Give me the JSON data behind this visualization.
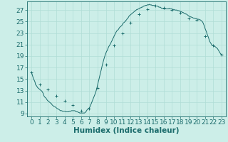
{
  "title": "",
  "xlabel": "Humidex (Indice chaleur)",
  "xlim": [
    -0.5,
    23.5
  ],
  "ylim": [
    8.5,
    28.5
  ],
  "yticks": [
    9,
    11,
    13,
    15,
    17,
    19,
    21,
    23,
    25,
    27
  ],
  "xticks": [
    0,
    1,
    2,
    3,
    4,
    5,
    6,
    7,
    8,
    9,
    10,
    11,
    12,
    13,
    14,
    15,
    16,
    17,
    18,
    19,
    20,
    21,
    22,
    23
  ],
  "bg_color": "#cceee8",
  "line_color": "#1a6b6b",
  "grid_color": "#b0ddd6",
  "marker_x": [
    0,
    1,
    2,
    3,
    4,
    5,
    6,
    7,
    8,
    9,
    10,
    11,
    12,
    13,
    14,
    15,
    16,
    17,
    18,
    19,
    20,
    21,
    22,
    23
  ],
  "marker_y": [
    16.2,
    14.0,
    13.2,
    12.1,
    11.2,
    10.5,
    9.5,
    9.8,
    13.5,
    17.5,
    20.8,
    23.0,
    24.8,
    26.3,
    27.2,
    27.8,
    27.4,
    27.0,
    26.5,
    25.5,
    25.3,
    22.5,
    20.8,
    19.2
  ],
  "line_x": [
    0.0,
    0.08,
    0.17,
    0.25,
    0.33,
    0.42,
    0.5,
    0.58,
    0.67,
    0.75,
    0.83,
    0.92,
    1.0,
    1.08,
    1.17,
    1.25,
    1.33,
    1.42,
    1.5,
    1.58,
    1.67,
    1.75,
    1.83,
    1.92,
    2.0,
    2.08,
    2.17,
    2.25,
    2.33,
    2.42,
    2.5,
    2.58,
    2.67,
    2.75,
    2.83,
    2.92,
    3.0,
    3.08,
    3.17,
    3.25,
    3.33,
    3.42,
    3.5,
    3.58,
    3.67,
    3.75,
    3.83,
    3.92,
    4.0,
    4.08,
    4.17,
    4.25,
    4.33,
    4.42,
    4.5,
    4.58,
    4.67,
    4.75,
    4.83,
    4.92,
    5.0,
    5.08,
    5.17,
    5.25,
    5.33,
    5.42,
    5.5,
    5.58,
    5.67,
    5.75,
    5.83,
    5.92,
    6.0,
    6.08,
    6.17,
    6.25,
    6.33,
    6.42,
    6.5,
    6.58,
    6.67,
    6.75,
    6.83,
    6.92,
    7.0,
    7.08,
    7.17,
    7.25,
    7.33,
    7.42,
    7.5,
    7.58,
    7.67,
    7.75,
    7.83,
    7.92,
    8.0,
    8.08,
    8.17,
    8.25,
    8.33,
    8.42,
    8.5,
    8.58,
    8.67,
    8.75,
    8.83,
    8.92,
    9.0,
    9.08,
    9.17,
    9.25,
    9.33,
    9.42,
    9.5,
    9.58,
    9.67,
    9.75,
    9.83,
    9.92,
    10.0,
    10.08,
    10.17,
    10.25,
    10.33,
    10.42,
    10.5,
    10.58,
    10.67,
    10.75,
    10.83,
    10.92,
    11.0,
    11.08,
    11.17,
    11.25,
    11.33,
    11.42,
    11.5,
    11.58,
    11.67,
    11.75,
    11.83,
    11.92,
    12.0,
    12.08,
    12.17,
    12.25,
    12.33,
    12.42,
    12.5,
    12.58,
    12.67,
    12.75,
    12.83,
    12.92,
    13.0,
    13.08,
    13.17,
    13.25,
    13.33,
    13.42,
    13.5,
    13.58,
    13.67,
    13.75,
    13.83,
    13.92,
    14.0,
    14.08,
    14.17,
    14.25,
    14.33,
    14.42,
    14.5,
    14.58,
    14.67,
    14.75,
    14.83,
    14.92,
    15.0,
    15.08,
    15.17,
    15.25,
    15.33,
    15.42,
    15.5,
    15.58,
    15.67,
    15.75,
    15.83,
    15.92,
    16.0,
    16.08,
    16.17,
    16.25,
    16.33,
    16.42,
    16.5,
    16.58,
    16.67,
    16.75,
    16.83,
    16.92,
    17.0,
    17.08,
    17.17,
    17.25,
    17.33,
    17.42,
    17.5,
    17.58,
    17.67,
    17.75,
    17.83,
    17.92,
    18.0,
    18.08,
    18.17,
    18.25,
    18.33,
    18.42,
    18.5,
    18.58,
    18.67,
    18.75,
    18.83,
    18.92,
    19.0,
    19.08,
    19.17,
    19.25,
    19.33,
    19.42,
    19.5,
    19.58,
    19.67,
    19.75,
    19.83,
    19.92,
    20.0,
    20.08,
    20.17,
    20.25,
    20.33,
    20.42,
    20.5,
    20.58,
    20.67,
    20.75,
    20.83,
    20.92,
    21.0,
    21.08,
    21.17,
    21.25,
    21.33,
    21.42,
    21.5,
    21.58,
    21.67,
    21.75,
    21.83,
    21.92,
    22.0,
    22.08,
    22.17,
    22.25,
    22.33,
    22.42,
    22.5,
    22.58,
    22.67,
    22.75,
    22.83,
    22.92,
    23.0
  ],
  "line_y": [
    16.2,
    15.8,
    15.4,
    15.0,
    14.8,
    14.5,
    14.0,
    13.9,
    13.7,
    13.5,
    13.4,
    13.3,
    13.2,
    13.1,
    13.0,
    12.9,
    12.7,
    12.5,
    12.1,
    11.9,
    11.8,
    11.7,
    11.5,
    11.3,
    11.2,
    11.1,
    11.0,
    10.9,
    10.8,
    10.7,
    10.5,
    10.4,
    10.3,
    10.2,
    10.2,
    10.1,
    10.0,
    9.9,
    9.8,
    9.8,
    9.7,
    9.6,
    9.5,
    9.5,
    9.5,
    9.4,
    9.4,
    9.4,
    9.4,
    9.4,
    9.3,
    9.3,
    9.3,
    9.3,
    9.3,
    9.4,
    9.4,
    9.4,
    9.5,
    9.5,
    9.5,
    9.5,
    9.5,
    9.5,
    9.4,
    9.3,
    9.3,
    9.3,
    9.2,
    9.2,
    9.1,
    9.1,
    9.1,
    9.1,
    9.1,
    9.1,
    9.1,
    9.1,
    9.2,
    9.3,
    9.5,
    9.7,
    9.8,
    9.9,
    10.0,
    10.2,
    10.5,
    10.8,
    11.1,
    11.4,
    11.7,
    12.0,
    12.3,
    12.6,
    13.0,
    13.5,
    14.0,
    14.5,
    15.0,
    15.5,
    16.0,
    16.5,
    17.0,
    17.5,
    18.0,
    18.4,
    18.8,
    19.2,
    19.5,
    19.8,
    20.0,
    20.3,
    20.6,
    20.8,
    21.0,
    21.2,
    21.5,
    21.7,
    22.0,
    22.2,
    22.5,
    22.7,
    23.0,
    23.2,
    23.4,
    23.5,
    23.6,
    23.8,
    24.0,
    24.1,
    24.2,
    24.3,
    24.5,
    24.7,
    24.8,
    24.9,
    25.0,
    25.2,
    25.3,
    25.5,
    25.6,
    25.8,
    26.0,
    26.1,
    26.2,
    26.3,
    26.4,
    26.5,
    26.6,
    26.7,
    26.8,
    26.9,
    27.0,
    27.1,
    27.1,
    27.2,
    27.2,
    27.3,
    27.4,
    27.4,
    27.5,
    27.5,
    27.6,
    27.7,
    27.7,
    27.8,
    27.8,
    27.8,
    27.9,
    27.9,
    27.9,
    28.0,
    27.9,
    27.9,
    27.9,
    27.8,
    27.8,
    27.8,
    27.8,
    27.7,
    27.8,
    27.7,
    27.7,
    27.7,
    27.6,
    27.5,
    27.5,
    27.5,
    27.4,
    27.3,
    27.3,
    27.3,
    27.2,
    27.2,
    27.2,
    27.2,
    27.2,
    27.2,
    27.2,
    27.2,
    27.3,
    27.2,
    27.2,
    27.2,
    27.2,
    27.1,
    27.1,
    27.1,
    27.0,
    27.0,
    27.0,
    27.0,
    26.9,
    26.9,
    26.9,
    26.8,
    26.8,
    26.7,
    26.7,
    26.6,
    26.6,
    26.5,
    26.4,
    26.4,
    26.3,
    26.3,
    26.2,
    26.1,
    26.0,
    25.9,
    25.9,
    25.8,
    25.8,
    25.7,
    25.7,
    25.6,
    25.6,
    25.6,
    25.5,
    25.5,
    25.5,
    25.4,
    25.4,
    25.4,
    25.3,
    25.3,
    25.2,
    25.1,
    25.0,
    24.8,
    24.5,
    24.2,
    23.8,
    23.5,
    23.2,
    22.8,
    22.5,
    22.2,
    21.8,
    21.5,
    21.3,
    21.1,
    20.9,
    20.8,
    20.8,
    20.7,
    20.7,
    20.6,
    20.5,
    20.4,
    20.3,
    20.1,
    19.9,
    19.7,
    19.5,
    19.3,
    19.2
  ],
  "marker_size": 1.8,
  "line_width": 0.7,
  "xlabel_fontsize": 7.5,
  "tick_fontsize": 6.5
}
